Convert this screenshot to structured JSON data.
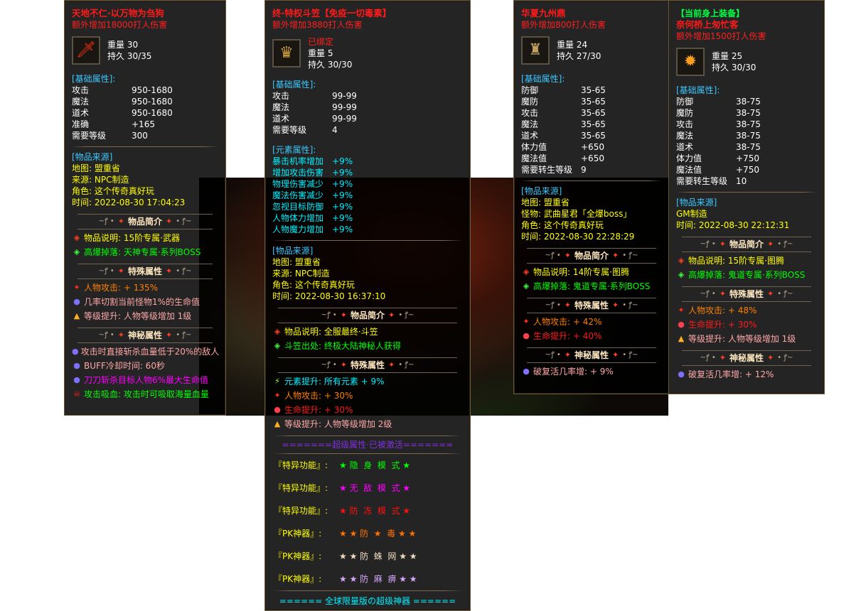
{
  "panels": [
    {
      "title": "天地不仁·以万物为刍狗",
      "bonus": "额外增加18000打人伤害",
      "icon": "sword-icon",
      "weight_label": "重量",
      "weight": "30",
      "dur_label": "持久",
      "durability": "30/35",
      "base": {
        "header": "[基础属性]:",
        "rows": [
          [
            "攻击",
            "950-1680"
          ],
          [
            "魔法",
            "950-1680"
          ],
          [
            "道术",
            "950-1680"
          ],
          [
            "准确",
            "+165"
          ],
          [
            "需要等级",
            "300"
          ]
        ]
      },
      "source": {
        "header": "[物品来源]",
        "rows": [
          "地图: 盟重省",
          "来源: NPC制造",
          "角色: 这个传奇真好玩",
          "时间: 2022-08-30 17:04:23"
        ]
      },
      "sections": [
        {
          "title": "物品简介",
          "items": [
            {
              "icon": "red-diamond-icon",
              "text": "物品说明: 15阶专属·武器",
              "color": "#ffff00"
            },
            {
              "icon": "green-diamond-icon",
              "text": "高爆掉落: 天神专属·系列BOSS",
              "color": "#00ff00"
            }
          ]
        },
        {
          "title": "特殊属性",
          "items": [
            {
              "icon": "red-star-icon",
              "text": "人物攻击: + 135%",
              "color": "#ff8000"
            },
            {
              "icon": "purple-orb-icon",
              "text": "几率切割当前怪物1%的生命值",
              "color": "#ffa8a8"
            },
            {
              "icon": "triangle-icon",
              "text": "等级提升: 人物等级增加 1级",
              "color": "#ffa8a8"
            }
          ]
        },
        {
          "title": "神秘属性",
          "items": [
            {
              "icon": "purple-orb-icon",
              "text": "攻击时直接斩杀血量低于20%的敌人",
              "color": "#ffa8a8"
            },
            {
              "icon": "purple-orb-icon",
              "text": "BUFF冷却时间: 60秒",
              "color": "#ffa8a8"
            },
            {
              "icon": "purple-orb-icon",
              "text": "刀刀斩杀目标人物6%最大生命值",
              "color": "#ff00ff"
            },
            {
              "icon": "skull-icon",
              "text": "攻击吸血: 攻击时可吸取海量血量",
              "color": "#00ff00"
            }
          ]
        }
      ]
    },
    {
      "title": "终·特权斗笠【免疫一切毒素】",
      "bonus": "额外增加3880打人伤害",
      "icon": "hat-icon",
      "bound": "已绑定",
      "weight_label": "重量",
      "weight": "5",
      "dur_label": "持久",
      "durability": "30/30",
      "base": {
        "header": "[基础属性]:",
        "rows": [
          [
            "攻击",
            "99-99"
          ],
          [
            "魔法",
            "99-99"
          ],
          [
            "道术",
            "99-99"
          ],
          [
            "需要等级",
            "4"
          ]
        ]
      },
      "element": {
        "header": "[元素属性]:",
        "rows": [
          [
            "暴击机率增加",
            "+9%"
          ],
          [
            "增加攻击伤害",
            "+9%"
          ],
          [
            "物理伤害减少",
            "+9%"
          ],
          [
            "魔法伤害减少",
            "+9%"
          ],
          [
            "忽视目标防御",
            "+9%"
          ],
          [
            "人物体力增加",
            "+9%"
          ],
          [
            "人物魔力增加",
            "+9%"
          ]
        ]
      },
      "source": {
        "header": "[物品来源]",
        "rows": [
          "地图: 盟重省",
          "来源: NPC制造",
          "角色: 这个传奇真好玩",
          "时间: 2022-08-30 16:37:10"
        ]
      },
      "sections": [
        {
          "title": "物品简介",
          "items": [
            {
              "icon": "red-diamond-icon",
              "text": "物品说明: 全服最终·斗笠",
              "color": "#ffff00"
            },
            {
              "icon": "green-diamond-icon",
              "text": "斗笠出处: 终极大陆神秘人获得",
              "color": "#00ff00"
            }
          ]
        },
        {
          "title": "特殊属性",
          "items": [
            {
              "icon": "lightning-icon",
              "text": "元素提升: 所有元素 + 9%",
              "color": "#00f0ff"
            },
            {
              "icon": "red-star-icon",
              "text": "人物攻击: + 30%",
              "color": "#ff8000"
            },
            {
              "icon": "red-orb-icon",
              "text": "生命提升: + 30%",
              "color": "#ff1a1a"
            },
            {
              "icon": "triangle-icon",
              "text": "等级提升: 人物等级增加 2级",
              "color": "#ffa8a8"
            }
          ]
        }
      ],
      "super": {
        "title": "=======超级属性·已被激活=======",
        "rows": [
          {
            "label": "『特异功能』:",
            "text": "★ 隐  身  模  式 ★",
            "color": "#00ff00"
          },
          {
            "label": "『特异功能』:",
            "text": "★ 无  敌  模  式 ★",
            "color": "#ff00ff"
          },
          {
            "label": "『特异功能』:",
            "text": "★ 防  冻  模  式 ★",
            "color": "#ff1010"
          },
          {
            "label": "『PK神器』:",
            "text": "★ ★ 防  ★  毒 ★ ★",
            "color": "#ff7000"
          },
          {
            "label": "『PK神器』:",
            "text": "★ ★ 防  蛛  网 ★ ★",
            "color": "#f0dcc0"
          },
          {
            "label": "『PK神器』:",
            "text": "★ ★ 防  麻  痹 ★ ★",
            "color": "#d8a8ff"
          }
        ],
        "footer": "====== 全球限量版の超级神器 ======"
      }
    },
    {
      "title": "华夏九州鼎",
      "bonus": "额外增加800打人伤害",
      "icon": "cauldron-icon",
      "weight_label": "重量",
      "weight": "24",
      "dur_label": "持久",
      "durability": "27/30",
      "base": {
        "header": "[基础属性]:",
        "rows": [
          [
            "防御",
            "35-65"
          ],
          [
            "魔防",
            "35-65"
          ],
          [
            "攻击",
            "35-65"
          ],
          [
            "魔法",
            "35-65"
          ],
          [
            "道术",
            "35-65"
          ],
          [
            "体力值",
            "+650"
          ],
          [
            "魔法值",
            "+650"
          ],
          [
            "需要转生等级",
            "9"
          ]
        ]
      },
      "source": {
        "header": "[物品来源]",
        "rows": [
          "地图: 盟重省",
          "怪物: 武曲星君「全爆boss」",
          "角色: 这个传奇真好玩",
          "时间: 2022-08-30 22:28:29"
        ]
      },
      "sections": [
        {
          "title": "物品简介",
          "items": [
            {
              "icon": "red-diamond-icon",
              "text": "物品说明: 14阶专属·图腾",
              "color": "#ffff00"
            },
            {
              "icon": "green-diamond-icon",
              "text": "高爆掉落: 鬼道专属·系列BOSS",
              "color": "#00ff00"
            }
          ]
        },
        {
          "title": "特殊属性",
          "items": [
            {
              "icon": "red-star-icon",
              "text": "人物攻击: + 42%",
              "color": "#ff8000"
            },
            {
              "icon": "red-orb-icon",
              "text": "生命提升: + 40%",
              "color": "#ff1a1a"
            }
          ]
        },
        {
          "title": "神秘属性",
          "items": [
            {
              "icon": "purple-orb-icon",
              "text": "破复活几率增: + 9%",
              "color": "#ffa8a8"
            }
          ]
        }
      ]
    },
    {
      "top_label": "【当前身上装备】",
      "title": "奈何桥上匆忙客",
      "bonus": "额外增加1500打人伤害",
      "icon": "totem-icon",
      "weight_label": "重量",
      "weight": "25",
      "dur_label": "持久",
      "durability": "30/30",
      "base": {
        "header": "[基础属性]:",
        "rows": [
          [
            "防御",
            "38-75"
          ],
          [
            "魔防",
            "38-75"
          ],
          [
            "攻击",
            "38-75"
          ],
          [
            "魔法",
            "38-75"
          ],
          [
            "道术",
            "38-75"
          ],
          [
            "体力值",
            "+750"
          ],
          [
            "魔法值",
            "+750"
          ],
          [
            "需要转生等级",
            "10"
          ]
        ]
      },
      "source": {
        "header": "[物品来源]",
        "rows": [
          "GM制造",
          "时间: 2022-08-30 22:12:31"
        ]
      },
      "sections": [
        {
          "title": "物品简介",
          "items": [
            {
              "icon": "red-diamond-icon",
              "text": "物品说明: 15阶专属·图腾",
              "color": "#ffff00"
            },
            {
              "icon": "green-diamond-icon",
              "text": "高爆掉落: 鬼道专属·系列BOSS",
              "color": "#00ff00"
            }
          ]
        },
        {
          "title": "特殊属性",
          "items": [
            {
              "icon": "red-star-icon",
              "text": "人物攻击: + 48%",
              "color": "#ff8000"
            },
            {
              "icon": "red-orb-icon",
              "text": "生命提升: + 30%",
              "color": "#ff1a1a"
            },
            {
              "icon": "triangle-icon",
              "text": "等级提升: 人物等级增加 1级",
              "color": "#ffa8a8"
            }
          ]
        },
        {
          "title": "神秘属性",
          "items": [
            {
              "icon": "purple-orb-icon",
              "text": "破复活几率增: + 12%",
              "color": "#ffa8a8"
            }
          ]
        }
      ]
    }
  ]
}
